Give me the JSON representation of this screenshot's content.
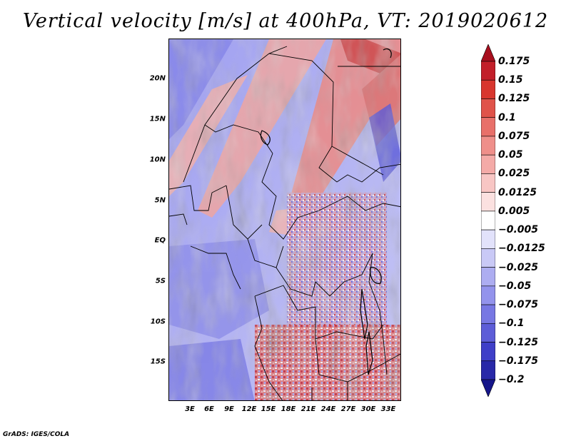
{
  "title": "Vertical velocity [m/s] at 400hPa, VT: 2019020612",
  "credit": "GrADS: IGES/COLA",
  "map": {
    "lat_labels": [
      "20N",
      "15N",
      "10N",
      "5N",
      "EQ",
      "5S",
      "10S",
      "15S"
    ],
    "lon_labels": [
      "3E",
      "6E",
      "9E",
      "12E",
      "15E",
      "18E",
      "21E",
      "24E",
      "27E",
      "30E",
      "33E"
    ],
    "lat_range": [
      -19.7,
      24.9
    ],
    "lon_range": [
      0.3,
      34.1
    ]
  },
  "colorbar": {
    "labels": [
      "0.175",
      "0.15",
      "0.125",
      "0.1",
      "0.075",
      "0.05",
      "0.025",
      "0.0125",
      "0.005",
      "−0.005",
      "−0.0125",
      "−0.025",
      "−0.05",
      "−0.075",
      "−0.1",
      "−0.125",
      "−0.175",
      "−0.2"
    ],
    "colors": [
      "#a80f1e",
      "#c21f2a",
      "#d8362e",
      "#e0534a",
      "#e8706a",
      "#ef8f8a",
      "#f4aaa7",
      "#f8c6c4",
      "#fbe1e0",
      "#ffffff",
      "#e2e2fb",
      "#c9c9f6",
      "#adadf1",
      "#9393ec",
      "#7777e3",
      "#5d5dd8",
      "#3f3fc8",
      "#2828a8",
      "#16168a"
    ]
  },
  "colors": {
    "positive": "#e0534a",
    "negative": "#7777e3",
    "background_field": "#b9b9f2",
    "border": "#000000"
  }
}
